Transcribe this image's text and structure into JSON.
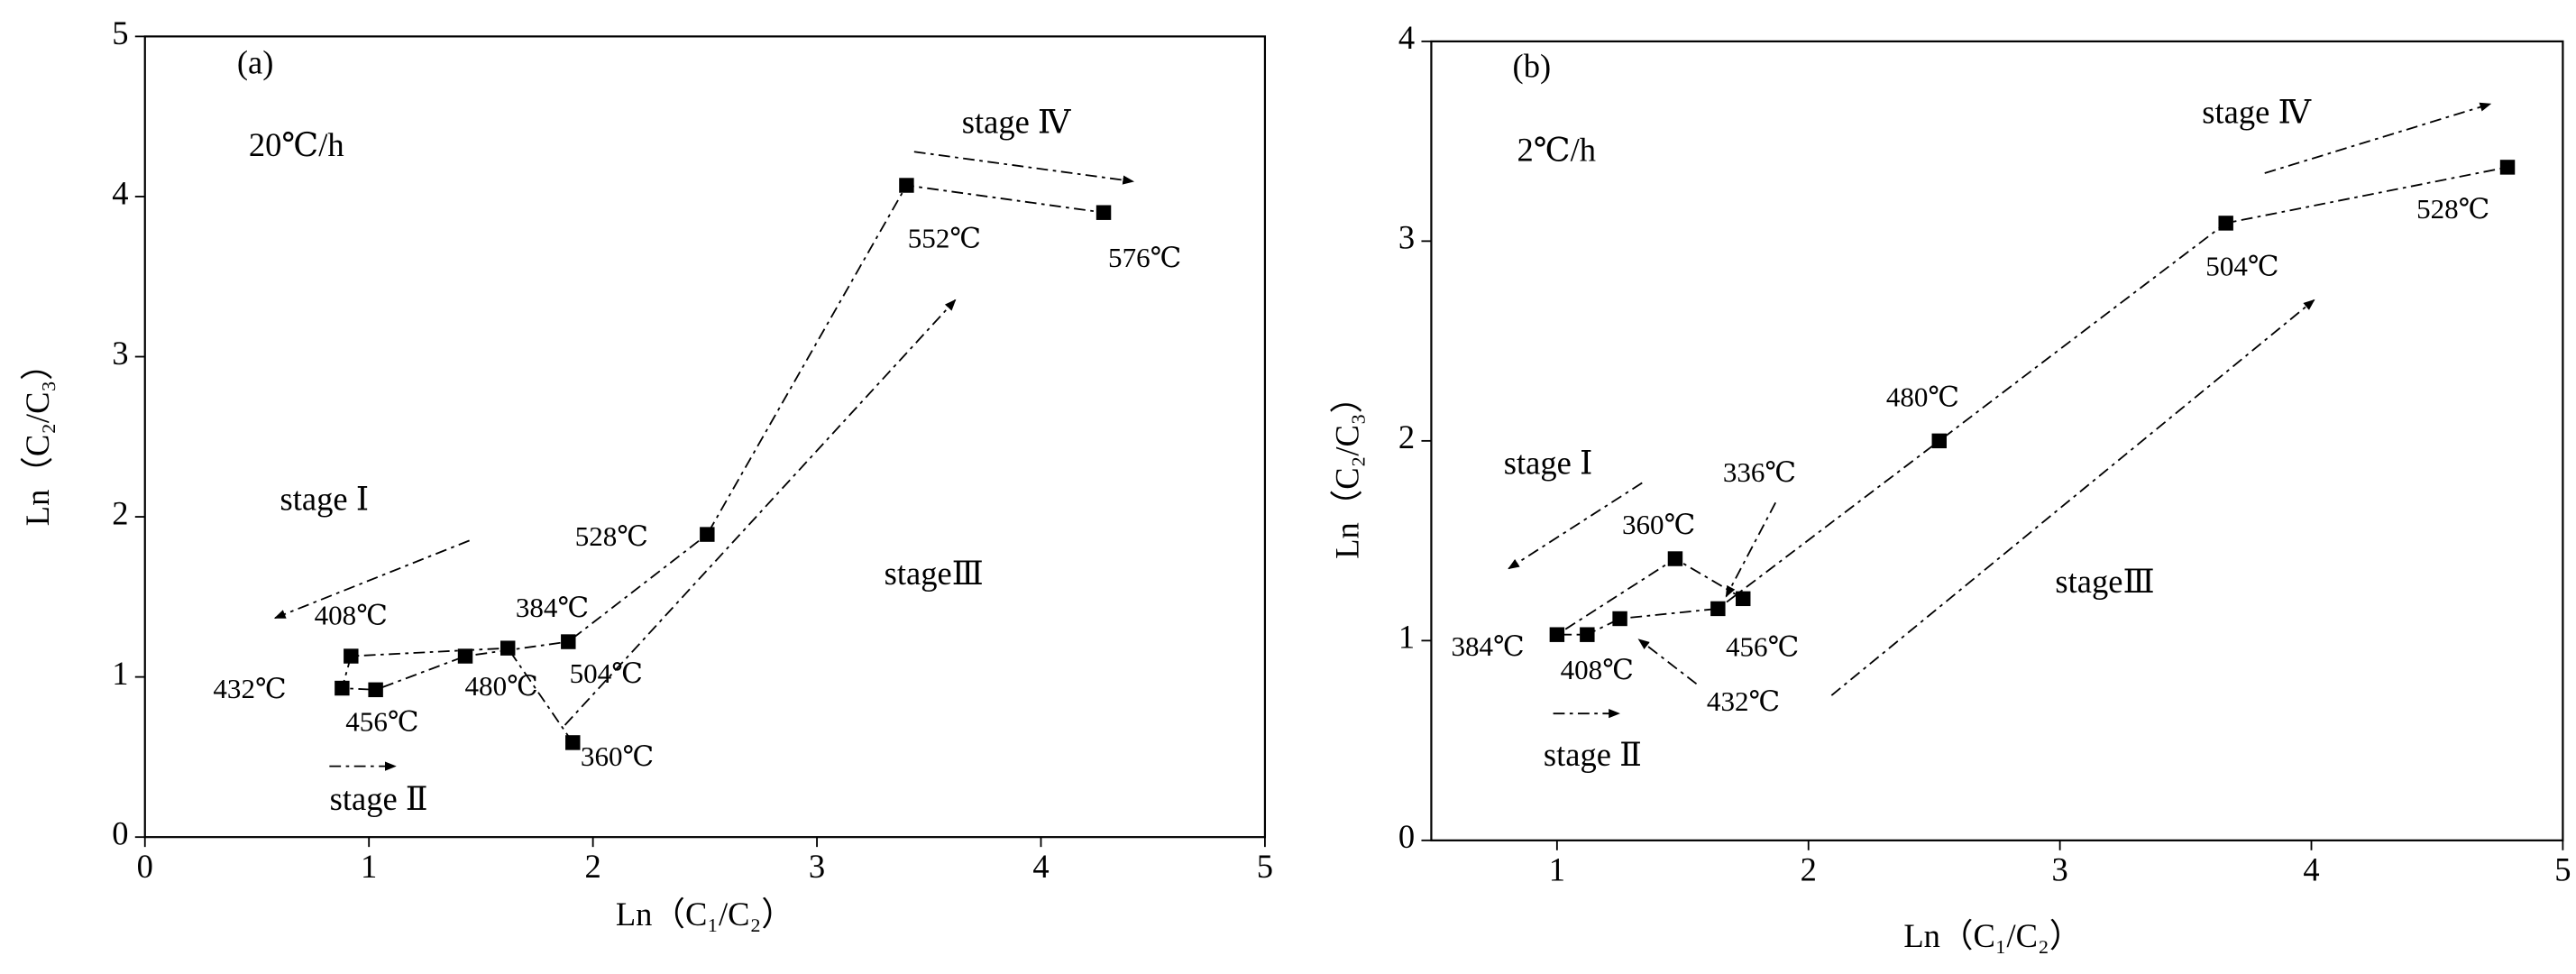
{
  "chart_data": [
    {
      "type": "line",
      "panel_label": "(a)",
      "rate": "20℃/h",
      "x_label": "Ln（C₁/C₂）",
      "y_label": "Ln（C₂/C₃）",
      "xlim": [
        0,
        5
      ],
      "ylim": [
        0,
        5
      ],
      "xticks": [
        0,
        1,
        2,
        3,
        4,
        5
      ],
      "yticks": [
        0,
        1,
        2,
        3,
        4,
        5
      ],
      "color": "#000000",
      "annotations": [
        "stage Ⅰ",
        "stage Ⅱ",
        "stageⅢ",
        "stage Ⅳ"
      ],
      "series": [
        {
          "name": "20℃/h",
          "color": "#000000",
          "x": [
            1.91,
            1.62,
            0.92,
            0.88,
            1.03,
            1.43,
            1.89,
            2.51,
            3.4,
            4.28
          ],
          "values": [
            0.59,
            1.18,
            1.13,
            0.93,
            0.92,
            1.13,
            1.22,
            1.89,
            4.07,
            3.9
          ],
          "labels": [
            "360℃",
            "384℃",
            "408℃",
            "432℃",
            "456℃",
            "480℃",
            "504℃",
            "528℃",
            "552℃",
            "576℃"
          ]
        }
      ]
    },
    {
      "type": "line",
      "panel_label": "(b)",
      "rate": "2℃/h",
      "x_label": "Ln（C₁/C₂）",
      "y_label": "Ln（C₂/C₃）",
      "xlim": [
        0.5,
        5
      ],
      "ylim": [
        0,
        4
      ],
      "xticks": [
        1,
        2,
        3,
        4,
        5
      ],
      "yticks": [
        0,
        1,
        2,
        3,
        4
      ],
      "color": "#000000",
      "annotations": [
        "stage Ⅰ",
        "stage Ⅱ",
        "stageⅢ",
        "stage Ⅳ"
      ],
      "series": [
        {
          "name": "2℃/h",
          "color": "#000000",
          "x": [
            1.74,
            1.47,
            1.0,
            1.12,
            1.25,
            1.64,
            2.52,
            3.66,
            4.78
          ],
          "values": [
            1.21,
            1.41,
            1.03,
            1.03,
            1.11,
            1.16,
            2.0,
            3.09,
            3.37
          ],
          "labels": [
            "336℃",
            "360℃",
            "384℃",
            "408℃",
            "432℃",
            "456℃",
            "480℃",
            "504℃",
            "528℃"
          ]
        }
      ]
    }
  ]
}
